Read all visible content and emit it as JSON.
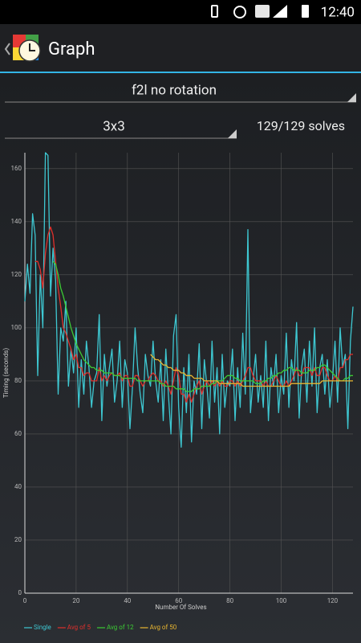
{
  "status_bar": {
    "time": "12:40"
  },
  "app_bar": {
    "title": "Graph"
  },
  "controls": {
    "puzzle_category": "f2l no rotation",
    "puzzle_type": "3x3",
    "solve_count": "129/129 solves"
  },
  "chart_data": {
    "type": "line",
    "x_label": "Number Of Solves",
    "y_label": "Timing (seconds)",
    "xlim": [
      0,
      128
    ],
    "ylim": [
      0,
      166
    ],
    "xticks": [
      0,
      20,
      40,
      60,
      80,
      100,
      120
    ],
    "yticks": [
      0,
      20,
      40,
      60,
      80,
      100,
      120,
      140,
      160
    ],
    "grid": true,
    "series": [
      {
        "name": "Single",
        "color": "#3ec8d2",
        "values": [
          110,
          124,
          113,
          143,
          135,
          82,
          120,
          100,
          166,
          165,
          112,
          130,
          118,
          75,
          100,
          95,
          110,
          78,
          92,
          83,
          100,
          70,
          88,
          75,
          95,
          85,
          70,
          80,
          83,
          105,
          65,
          90,
          78,
          85,
          92,
          72,
          80,
          95,
          70,
          88,
          83,
          62,
          78,
          100,
          85,
          75,
          68,
          90,
          82,
          78,
          95,
          80,
          72,
          88,
          65,
          92,
          75,
          60,
          97,
          105,
          70,
          55,
          85,
          68,
          90,
          57,
          80,
          75,
          94,
          62,
          88,
          78,
          66,
          95,
          72,
          85,
          60,
          90,
          70,
          80,
          78,
          92,
          65,
          85,
          70,
          98,
          75,
          137,
          68,
          80,
          90,
          72,
          82,
          70,
          95,
          65,
          85,
          78,
          90,
          68,
          82,
          75,
          98,
          70,
          88,
          80,
          102,
          66,
          85,
          92,
          72,
          95,
          78,
          100,
          68,
          85,
          90,
          75,
          88,
          70,
          80,
          95,
          72,
          100,
          85,
          90,
          62,
          95,
          108
        ]
      },
      {
        "name": "Avg of 5",
        "color": "#e0302c",
        "values": [
          null,
          null,
          null,
          null,
          125,
          125,
          122,
          115,
          128,
          135,
          138,
          135,
          125,
          115,
          108,
          100,
          98,
          95,
          92,
          88,
          90,
          85,
          85,
          82,
          83,
          83,
          80,
          80,
          80,
          85,
          80,
          82,
          80,
          82,
          83,
          82,
          82,
          83,
          80,
          82,
          82,
          78,
          78,
          82,
          82,
          80,
          78,
          80,
          80,
          82,
          83,
          82,
          80,
          80,
          78,
          80,
          78,
          75,
          80,
          85,
          82,
          75,
          75,
          72,
          75,
          72,
          75,
          78,
          80,
          75,
          78,
          80,
          78,
          80,
          78,
          80,
          78,
          80,
          78,
          78,
          80,
          80,
          78,
          80,
          78,
          80,
          82,
          85,
          85,
          82,
          80,
          80,
          80,
          78,
          80,
          78,
          78,
          80,
          82,
          80,
          78,
          78,
          80,
          78,
          80,
          82,
          85,
          82,
          82,
          85,
          85,
          85,
          82,
          85,
          82,
          82,
          85,
          85,
          82,
          80,
          80,
          82,
          80,
          85,
          85,
          88,
          88,
          90,
          90
        ]
      },
      {
        "name": "Avg of 12",
        "color": "#3ccc34",
        "values": [
          null,
          null,
          null,
          null,
          null,
          null,
          null,
          null,
          null,
          null,
          null,
          125,
          124,
          120,
          115,
          112,
          108,
          104,
          100,
          97,
          94,
          92,
          90,
          88,
          87,
          86,
          85,
          85,
          84,
          84,
          84,
          83,
          83,
          83,
          83,
          82,
          82,
          82,
          81,
          81,
          81,
          81,
          81,
          81,
          80,
          80,
          80,
          80,
          80,
          80,
          80,
          80,
          80,
          79,
          79,
          78,
          78,
          78,
          78,
          77,
          77,
          77,
          77,
          76,
          76,
          76,
          77,
          77,
          77,
          78,
          78,
          78,
          78,
          79,
          79,
          80,
          80,
          80,
          81,
          82,
          82,
          82,
          81,
          81,
          80,
          80,
          80,
          80,
          80,
          80,
          79,
          79,
          79,
          80,
          80,
          81,
          81,
          82,
          82,
          83,
          83,
          84,
          84,
          85,
          85,
          84,
          84,
          84,
          83,
          83,
          83,
          84,
          84,
          84,
          85,
          85,
          86,
          86,
          85,
          84,
          83,
          82,
          81,
          80,
          80,
          81,
          81,
          82,
          82
        ]
      },
      {
        "name": "Avg of 50",
        "color": "#e8b630",
        "values": [
          null,
          null,
          null,
          null,
          null,
          null,
          null,
          null,
          null,
          null,
          null,
          null,
          null,
          null,
          null,
          null,
          null,
          null,
          null,
          null,
          null,
          null,
          null,
          null,
          null,
          null,
          null,
          null,
          null,
          null,
          null,
          null,
          null,
          null,
          null,
          null,
          null,
          null,
          null,
          null,
          null,
          null,
          null,
          null,
          null,
          null,
          null,
          null,
          null,
          90,
          89,
          88,
          88,
          87,
          86,
          86,
          85,
          85,
          84,
          84,
          84,
          83,
          83,
          82,
          82,
          82,
          81,
          81,
          81,
          81,
          80,
          80,
          80,
          80,
          80,
          80,
          79,
          79,
          79,
          79,
          79,
          79,
          79,
          79,
          79,
          78,
          78,
          78,
          78,
          78,
          78,
          78,
          78,
          78,
          78,
          78,
          78,
          78,
          78,
          78,
          78,
          78,
          78,
          78,
          79,
          79,
          79,
          79,
          79,
          79,
          79,
          79,
          79,
          79,
          79,
          79,
          80,
          80,
          80,
          80,
          80,
          80,
          80,
          80,
          80,
          80,
          80,
          80,
          80
        ]
      }
    ]
  }
}
